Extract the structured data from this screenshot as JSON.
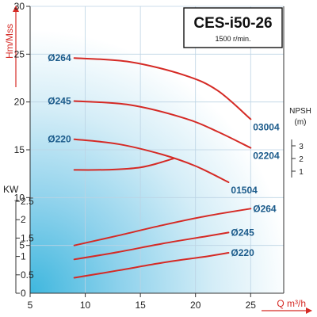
{
  "chart_data": {
    "type": "line",
    "title": "CES-i50-26",
    "subtitle": "1500 r/min.",
    "xlabel": "Q m³/h",
    "x_ticks": [
      5,
      10,
      15,
      20,
      25
    ],
    "xlim": [
      5,
      28
    ],
    "grid": true,
    "background": "blue-white gradient",
    "head_panel": {
      "ylabel": "Hm/Mss",
      "ylim": [
        0,
        30
      ],
      "y_ticks": [
        5,
        10,
        15,
        20,
        25,
        30
      ],
      "series": [
        {
          "name": "Ø264",
          "end_label": "03004",
          "points": [
            [
              9,
              24.6
            ],
            [
              14,
              24.2
            ],
            [
              19,
              22.8
            ],
            [
              22,
              21.2
            ],
            [
              25,
              18.2
            ]
          ]
        },
        {
          "name": "Ø245",
          "end_label": "02204",
          "points": [
            [
              9,
              20.1
            ],
            [
              14,
              19.7
            ],
            [
              19,
              18.3
            ],
            [
              22,
              16.9
            ],
            [
              25,
              15.2
            ]
          ]
        },
        {
          "name": "Ø220",
          "end_label": "01504",
          "points": [
            [
              9,
              16.1
            ],
            [
              13,
              15.6
            ],
            [
              17,
              14.5
            ],
            [
              20,
              13.3
            ],
            [
              23,
              11.6
            ]
          ]
        }
      ]
    },
    "npsh_panel": {
      "ylabel": "NPSH",
      "unit": "(m)",
      "ylim": [
        0.5,
        3.5
      ],
      "y_ticks": [
        1,
        2,
        3
      ],
      "series": [
        {
          "points": [
            [
              9,
              1.1
            ],
            [
              11,
              1.1
            ],
            [
              13,
              1.15
            ],
            [
              15,
              1.3
            ],
            [
              16.5,
              1.6
            ],
            [
              18,
              2.0
            ]
          ]
        }
      ]
    },
    "power_panel": {
      "ylabel": "KW",
      "ylim": [
        0,
        2.5
      ],
      "y_ticks": [
        0,
        0.5,
        1,
        1.5,
        2,
        2.5
      ],
      "series": [
        {
          "name": "Ø264",
          "points": [
            [
              9,
              1.3
            ],
            [
              13,
              1.57
            ],
            [
              17,
              1.85
            ],
            [
              21,
              2.1
            ],
            [
              25,
              2.3
            ]
          ]
        },
        {
          "name": "Ø245",
          "points": [
            [
              9,
              0.92
            ],
            [
              13,
              1.12
            ],
            [
              17,
              1.35
            ],
            [
              21,
              1.55
            ],
            [
              23,
              1.65
            ]
          ]
        },
        {
          "name": "Ø220",
          "points": [
            [
              9,
              0.42
            ],
            [
              13,
              0.62
            ],
            [
              17,
              0.83
            ],
            [
              21,
              1.0
            ],
            [
              23,
              1.1
            ]
          ]
        }
      ]
    }
  },
  "colors": {
    "curve": "#d52a25",
    "curve_label": "#1a5a8a",
    "axis_title": "#d52a25",
    "grid": "#bcd3e4",
    "gradient_corner": "#3fb7de",
    "gradient_mid": "#cfeaf5"
  }
}
